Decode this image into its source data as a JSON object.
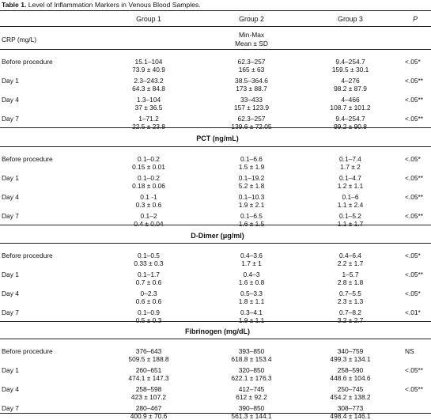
{
  "caption": {
    "label": "Table 1.",
    "text": " Level of Inflammation Markers in Venous Blood Samples."
  },
  "header": {
    "group1": "Group 1",
    "group2": "Group 2",
    "group3": "Group 3",
    "p": "P"
  },
  "crp": {
    "title": "CRP (mg/L)",
    "stat_line1": "Min-Max",
    "stat_line2": "Mean ± SD",
    "rows": [
      {
        "label": "Before procedure",
        "g1a": "15.1–104",
        "g1b": "73.9 ± 40.9",
        "g2a": "62.3–257",
        "g2b": "165 ± 63",
        "g3a": "9.4–254.7",
        "g3b": "159.5 ± 30.1",
        "p": "<.05*"
      },
      {
        "label": "Day 1",
        "g1a": "2.3–243.2",
        "g1b": "64.3 ± 84.8",
        "g2a": "38.5–364.6",
        "g2b": "173 ± 88.7",
        "g3a": "4–276",
        "g3b": "98.2 ± 87.9",
        "p": "<.05**"
      },
      {
        "label": "Day 4",
        "g1a": "1.3–104",
        "g1b": "37 ± 36.5",
        "g2a": "33–433",
        "g2b": "157 ± 123.9",
        "g3a": "4–466",
        "g3b": "108.7 ± 101.2",
        "p": "<.05**"
      },
      {
        "label": "Day 7",
        "g1a": "1–71.2",
        "g1b": "22.5 ± 23.8",
        "g2a": "62.3–257",
        "g2b": "139.6 ± 72.05",
        "g3a": "9.4–254.7",
        "g3b": "99.2 ± 90.8",
        "p": "<.05**"
      }
    ]
  },
  "pct": {
    "title": "PCT (ng/mL)",
    "rows": [
      {
        "label": "Before procedure",
        "g1a": "0.1–0.2",
        "g1b": "0.15 ± 0.01",
        "g2a": "0.1–6.6",
        "g2b": "1.5 ± 1.9",
        "g3a": "0.1–7.4",
        "g3b": "1.7 ± 2",
        "p": "<.05*"
      },
      {
        "label": "Day 1",
        "g1a": "0.1–0.2",
        "g1b": "0.18 ± 0.06",
        "g2a": "0.1–19.2",
        "g2b": "5.2 ± 1.8",
        "g3a": "0.1–4.7",
        "g3b": "1.2 ± 1.1",
        "p": "<.05**"
      },
      {
        "label": "Day 4",
        "g1a": "0.1 -1",
        "g1b": "0.3 ± 0.6",
        "g2a": "0.1–10.3",
        "g2b": "1.9 ± 2.1",
        "g3a": "0.1–6",
        "g3b": "1.1 ± 2.4",
        "p": "<.05**"
      },
      {
        "label": "Day 7",
        "g1a": "0.1–2",
        "g1b": "0.4 ± 0.04",
        "g2a": "0.1–6.5",
        "g2b": "1.6 ± 1.5",
        "g3a": "0.1–5.2",
        "g3b": "1.1 ± 1.7",
        "p": "<.05**"
      }
    ]
  },
  "ddimer": {
    "title": "D-Dimer (μg/ml)",
    "rows": [
      {
        "label": "Before procedure",
        "g1a": "0.1–0.5",
        "g1b": "0.33 ± 0.3",
        "g2a": "0.4–3.6",
        "g2b": "1.7 ± 1",
        "g3a": "0.4–6.4",
        "g3b": "2.2 ± 1.7",
        "p": "<.05*"
      },
      {
        "label": "Day 1",
        "g1a": "0.1–1.7",
        "g1b": "0.7 ± 0.6",
        "g2a": "0.4–3",
        "g2b": "1.6 ± 0.8",
        "g3a": "1–5.7",
        "g3b": "2.8 ± 1.8",
        "p": "<.05**"
      },
      {
        "label": "Day 4",
        "g1a": "0–2.3",
        "g1b": "0.6 ± 0.6",
        "g2a": "0.5–3.3",
        "g2b": "1.8 ± 1.1",
        "g3a": "0.7–5.5",
        "g3b": "2.3 ± 1.3",
        "p": "<.05*"
      },
      {
        "label": "Day 7",
        "g1a": "0.1–0.9",
        "g1b": "0.5 ± 0.3",
        "g2a": "0.3–4.1",
        "g2b": "1.9 ± 1.1",
        "g3a": "0.7–8.2",
        "g3b": "3.2 ± 2.7",
        "p": "<.01*"
      }
    ]
  },
  "fibrinogen": {
    "title": "Fibrinogen (mg/dL)",
    "rows": [
      {
        "label": "Before procedure",
        "g1a": "376–643",
        "g1b": "509.5 ± 188.8",
        "g2a": "393–850",
        "g2b": "618.8 ± 153.4",
        "g3a": "340–759",
        "g3b": "499.3 ± 134.1",
        "p": "NS"
      },
      {
        "label": "Day 1",
        "g1a": "260–651",
        "g1b": "474.1 ± 147.3",
        "g2a": "320–850",
        "g2b": "622.1 ± 176.3",
        "g3a": "258–590",
        "g3b": "448.6 ± 104.6",
        "p": "<.05**"
      },
      {
        "label": "Day 4",
        "g1a": "258–598",
        "g1b": "423 ± 107.2",
        "g2a": "412–745",
        "g2b": "612 ± 92.2",
        "g3a": "250–745",
        "g3b": "454.2 ± 138.2",
        "p": "<.05**"
      },
      {
        "label": "Day 7",
        "g1a": "280–467",
        "g1b": "400.9 ± 70.6",
        "g2a": "390–850",
        "g2b": "561.3 ± 144.1",
        "g3a": "308–773",
        "g3b": "498.4 ± 146.1",
        "p": ""
      }
    ]
  }
}
